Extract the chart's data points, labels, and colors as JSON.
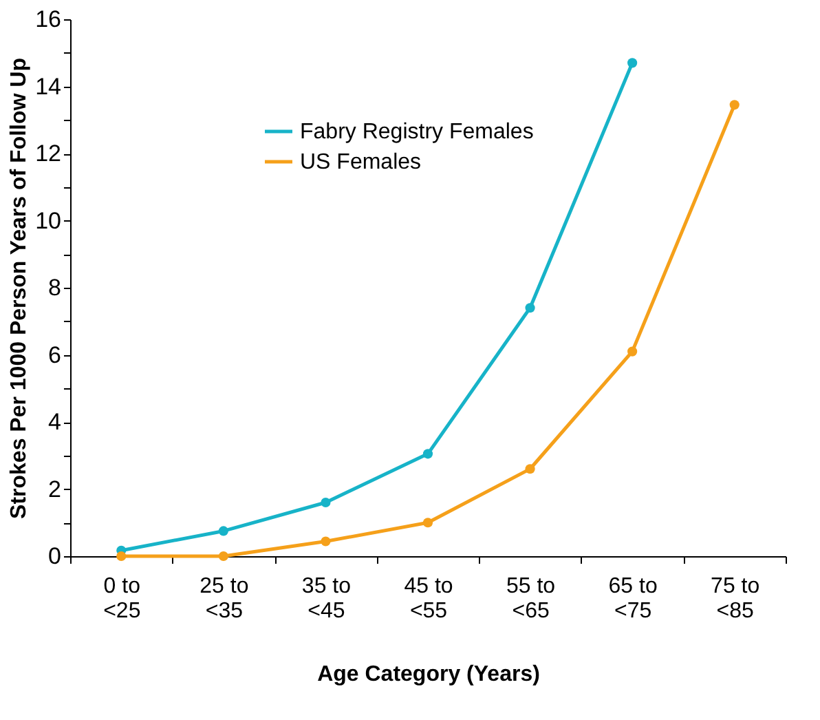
{
  "chart_data": {
    "type": "line",
    "xlabel": "Age Category (Years)",
    "ylabel": "Strokes Per 1000 Person Years of Follow Up",
    "categories": [
      "0 to\n<25",
      "25 to\n<35",
      "35 to\n<45",
      "45 to\n<55",
      "55 to\n<65",
      "65 to\n<75",
      "75 to\n<85"
    ],
    "series": [
      {
        "name": "Fabry Registry Females",
        "color": "#17b3c8",
        "values": [
          0.17,
          0.75,
          1.6,
          3.05,
          7.4,
          14.7,
          null
        ]
      },
      {
        "name": "US Females",
        "color": "#f5a01a",
        "values": [
          0,
          0,
          0.44,
          1.0,
          2.6,
          6.1,
          13.45
        ]
      }
    ],
    "ylim": [
      0,
      16
    ],
    "yticks": [
      0,
      {
        "value": 1,
        "label": null
      },
      2,
      {
        "value": 3,
        "label": null
      },
      4,
      {
        "value": 5,
        "label": null
      },
      6,
      {
        "value": 7,
        "label": null
      },
      8,
      {
        "value": 9,
        "label": null
      },
      10,
      {
        "value": 11,
        "label": null
      },
      12,
      {
        "value": 13,
        "label": null
      },
      14,
      {
        "value": 15,
        "label": null
      },
      16
    ],
    "legend": "top left",
    "marker": "circle",
    "line_style": "solid",
    "grid": false
  }
}
